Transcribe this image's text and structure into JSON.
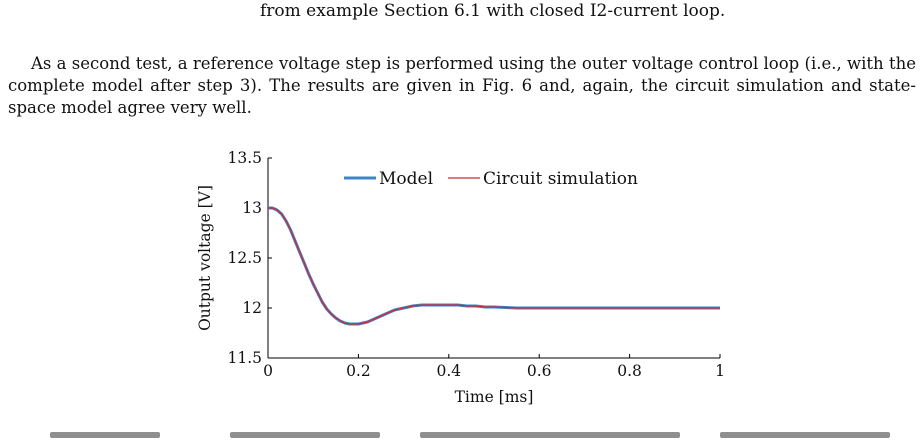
{
  "caption_fragment": "from example Section 6.1 with closed I2-current loop.",
  "paragraph": "As a second test, a reference voltage step is performed using the outer voltage control loop (i.e., with the complete model after step 3). The results are given in Fig. 6 and, again, the circuit simulation and state-space model agree very well.",
  "colors": {
    "model": "#3d86c6",
    "circuit": "#d0283a",
    "axis": "#000000"
  },
  "chart_data": {
    "type": "line",
    "xlabel": "Time [ms]",
    "ylabel": "Output voltage [V]",
    "xlim": [
      0,
      1
    ],
    "ylim": [
      11.5,
      13.5
    ],
    "xticks": [
      0,
      0.2,
      0.4,
      0.6,
      0.8,
      1
    ],
    "yticks": [
      11.5,
      12,
      12.5,
      13,
      13.5
    ],
    "xtick_labels": [
      "0",
      "0.2",
      "0.4",
      "0.6",
      "0.8",
      "1"
    ],
    "ytick_labels": [
      "11.5",
      "12",
      "12.5",
      "13",
      "13.5"
    ],
    "legend_position": "top",
    "grid": false,
    "series": [
      {
        "name": "Model",
        "x": [
          0,
          0.01,
          0.02,
          0.03,
          0.04,
          0.05,
          0.06,
          0.07,
          0.08,
          0.09,
          0.1,
          0.11,
          0.12,
          0.13,
          0.14,
          0.15,
          0.16,
          0.17,
          0.18,
          0.19,
          0.2,
          0.21,
          0.22,
          0.23,
          0.24,
          0.25,
          0.26,
          0.27,
          0.28,
          0.29,
          0.3,
          0.32,
          0.34,
          0.36,
          0.38,
          0.4,
          0.42,
          0.44,
          0.46,
          0.48,
          0.5,
          0.55,
          0.6,
          0.65,
          0.7,
          0.75,
          0.8,
          0.85,
          0.9,
          0.95,
          1.0
        ],
        "y": [
          13.0,
          13.0,
          12.98,
          12.94,
          12.87,
          12.78,
          12.67,
          12.56,
          12.45,
          12.34,
          12.24,
          12.15,
          12.06,
          11.99,
          11.94,
          11.9,
          11.87,
          11.85,
          11.84,
          11.84,
          11.84,
          11.85,
          11.86,
          11.88,
          11.9,
          11.92,
          11.94,
          11.96,
          11.98,
          11.99,
          12.0,
          12.02,
          12.03,
          12.03,
          12.03,
          12.03,
          12.03,
          12.02,
          12.02,
          12.01,
          12.01,
          12.0,
          12.0,
          12.0,
          12.0,
          12.0,
          12.0,
          12.0,
          12.0,
          12.0,
          12.0
        ]
      },
      {
        "name": "Circuit simulation",
        "x": [
          0,
          0.01,
          0.02,
          0.03,
          0.04,
          0.05,
          0.06,
          0.07,
          0.08,
          0.09,
          0.1,
          0.11,
          0.12,
          0.13,
          0.14,
          0.15,
          0.16,
          0.17,
          0.18,
          0.19,
          0.2,
          0.21,
          0.22,
          0.23,
          0.24,
          0.25,
          0.26,
          0.27,
          0.28,
          0.29,
          0.3,
          0.32,
          0.34,
          0.36,
          0.38,
          0.4,
          0.42,
          0.44,
          0.46,
          0.48,
          0.5,
          0.55,
          0.6,
          0.65,
          0.7,
          0.75,
          0.8,
          0.85,
          0.9,
          0.95,
          1.0
        ],
        "y": [
          13.0,
          13.0,
          12.98,
          12.94,
          12.87,
          12.78,
          12.67,
          12.56,
          12.45,
          12.34,
          12.24,
          12.15,
          12.06,
          11.99,
          11.94,
          11.9,
          11.87,
          11.85,
          11.84,
          11.84,
          11.84,
          11.85,
          11.86,
          11.88,
          11.9,
          11.92,
          11.94,
          11.96,
          11.98,
          11.99,
          12.0,
          12.02,
          12.03,
          12.03,
          12.03,
          12.03,
          12.03,
          12.02,
          12.02,
          12.01,
          12.01,
          12.0,
          12.0,
          12.0,
          12.0,
          12.0,
          12.0,
          12.0,
          12.0,
          12.0,
          12.0
        ]
      }
    ]
  }
}
